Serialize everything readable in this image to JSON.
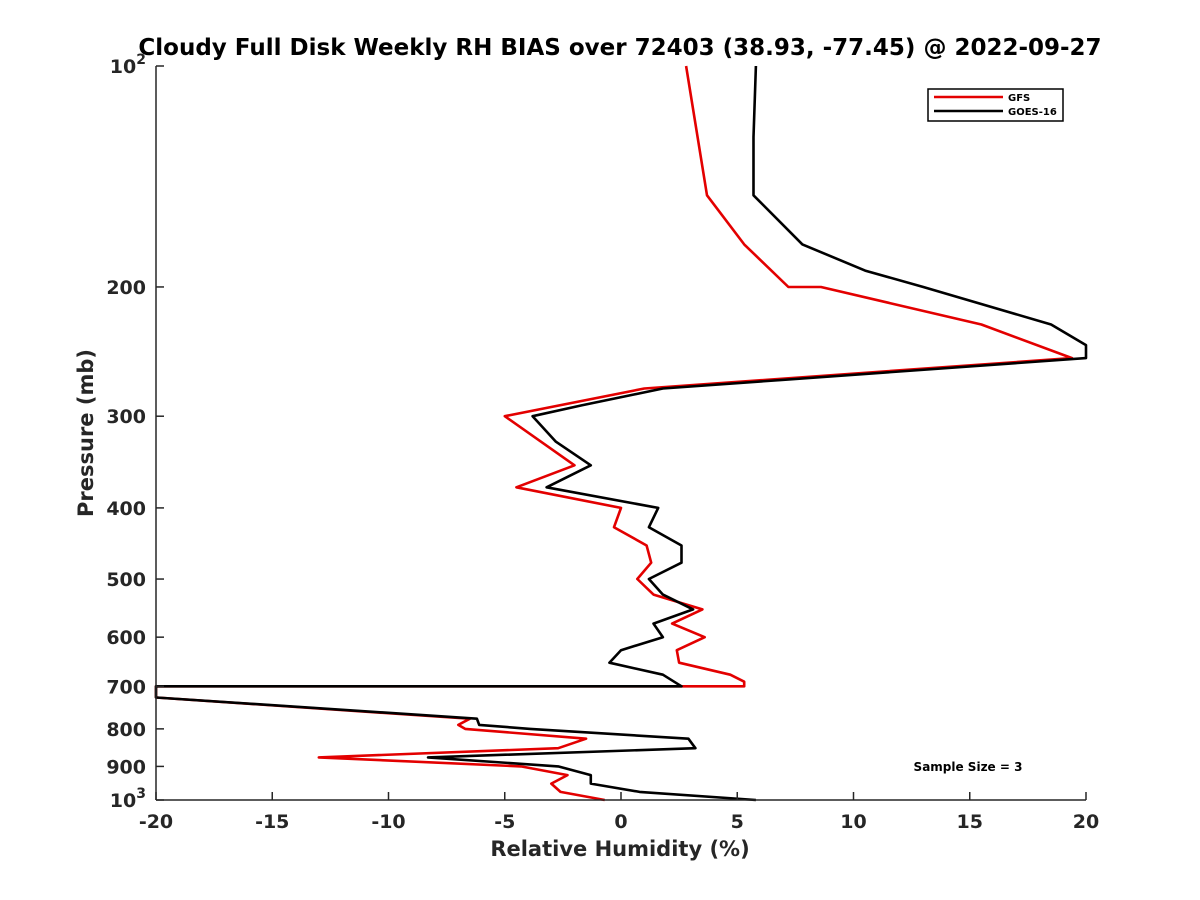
{
  "chart_data": {
    "type": "line",
    "title": "Cloudy Full Disk Weekly RH BIAS over 72403 (38.93, -77.45) @ 2022-09-27",
    "xlabel": "Relative Humidity (%)",
    "ylabel": "Pressure (mb)",
    "xlim": [
      -20,
      20
    ],
    "ylim": [
      100,
      1000
    ],
    "yscale": "log",
    "y_reversed": true,
    "grid": false,
    "legend_position": "top-right",
    "xticks": [
      -20,
      -15,
      -10,
      -5,
      0,
      5,
      10,
      15,
      20
    ],
    "xtick_labels": [
      "-20",
      "-15",
      "-10",
      "-5",
      "0",
      "5",
      "10",
      "15",
      "20"
    ],
    "yticks": [
      100,
      200,
      300,
      400,
      500,
      600,
      700,
      800,
      900,
      1000
    ],
    "ytick_labels": [
      {
        "base": "10",
        "exp": "2"
      },
      {
        "base": "200",
        "exp": ""
      },
      {
        "base": "300",
        "exp": ""
      },
      {
        "base": "400",
        "exp": ""
      },
      {
        "base": "500",
        "exp": ""
      },
      {
        "base": "600",
        "exp": ""
      },
      {
        "base": "700",
        "exp": ""
      },
      {
        "base": "800",
        "exp": ""
      },
      {
        "base": "900",
        "exp": ""
      },
      {
        "base": "10",
        "exp": "3"
      }
    ],
    "annotation": "Sample Size = 3",
    "series": [
      {
        "name": "GFS",
        "color": "#e30000",
        "points": [
          [
            2.8,
            100
          ],
          [
            3.7,
            150
          ],
          [
            5.3,
            175
          ],
          [
            7.2,
            200
          ],
          [
            8.6,
            200
          ],
          [
            15.5,
            225
          ],
          [
            19.4,
            250
          ],
          [
            1.0,
            275
          ],
          [
            -5.0,
            300
          ],
          [
            -2.0,
            350
          ],
          [
            -4.5,
            375
          ],
          [
            0.0,
            400
          ],
          [
            -0.3,
            425
          ],
          [
            1.1,
            450
          ],
          [
            1.3,
            475
          ],
          [
            0.7,
            500
          ],
          [
            1.4,
            525
          ],
          [
            3.5,
            550
          ],
          [
            2.2,
            575
          ],
          [
            3.6,
            600
          ],
          [
            2.4,
            625
          ],
          [
            2.5,
            650
          ],
          [
            4.7,
            675
          ],
          [
            5.3,
            690
          ],
          [
            5.3,
            700
          ],
          [
            -20.0,
            700
          ],
          [
            -20.0,
            725
          ],
          [
            -6.5,
            775
          ],
          [
            -7.0,
            790
          ],
          [
            -6.7,
            800
          ],
          [
            -1.5,
            825
          ],
          [
            -2.7,
            850
          ],
          [
            -13.0,
            875
          ],
          [
            -4.3,
            900
          ],
          [
            -2.3,
            925
          ],
          [
            -3.0,
            950
          ],
          [
            -2.6,
            975
          ],
          [
            -0.7,
            1000
          ]
        ]
      },
      {
        "name": "GOES-16",
        "color": "#000000",
        "points": [
          [
            5.8,
            100
          ],
          [
            5.7,
            125
          ],
          [
            5.7,
            150
          ],
          [
            7.8,
            175
          ],
          [
            10.5,
            190
          ],
          [
            13.0,
            200
          ],
          [
            18.5,
            225
          ],
          [
            20.0,
            240
          ],
          [
            20.0,
            250
          ],
          [
            1.8,
            275
          ],
          [
            -1.7,
            290
          ],
          [
            -3.8,
            300
          ],
          [
            -2.8,
            325
          ],
          [
            -1.3,
            350
          ],
          [
            -3.2,
            375
          ],
          [
            1.6,
            400
          ],
          [
            1.2,
            425
          ],
          [
            2.6,
            450
          ],
          [
            2.6,
            475
          ],
          [
            1.2,
            500
          ],
          [
            1.8,
            525
          ],
          [
            3.1,
            550
          ],
          [
            1.4,
            575
          ],
          [
            1.8,
            600
          ],
          [
            0.0,
            625
          ],
          [
            -0.5,
            650
          ],
          [
            1.8,
            675
          ],
          [
            2.6,
            700
          ],
          [
            -20.0,
            700
          ],
          [
            -20.0,
            725
          ],
          [
            -6.2,
            775
          ],
          [
            -6.1,
            790
          ],
          [
            -3.9,
            800
          ],
          [
            2.9,
            825
          ],
          [
            3.2,
            850
          ],
          [
            -8.3,
            875
          ],
          [
            -2.7,
            900
          ],
          [
            -1.3,
            925
          ],
          [
            -1.3,
            950
          ],
          [
            0.8,
            975
          ],
          [
            5.8,
            1000
          ]
        ]
      }
    ]
  }
}
